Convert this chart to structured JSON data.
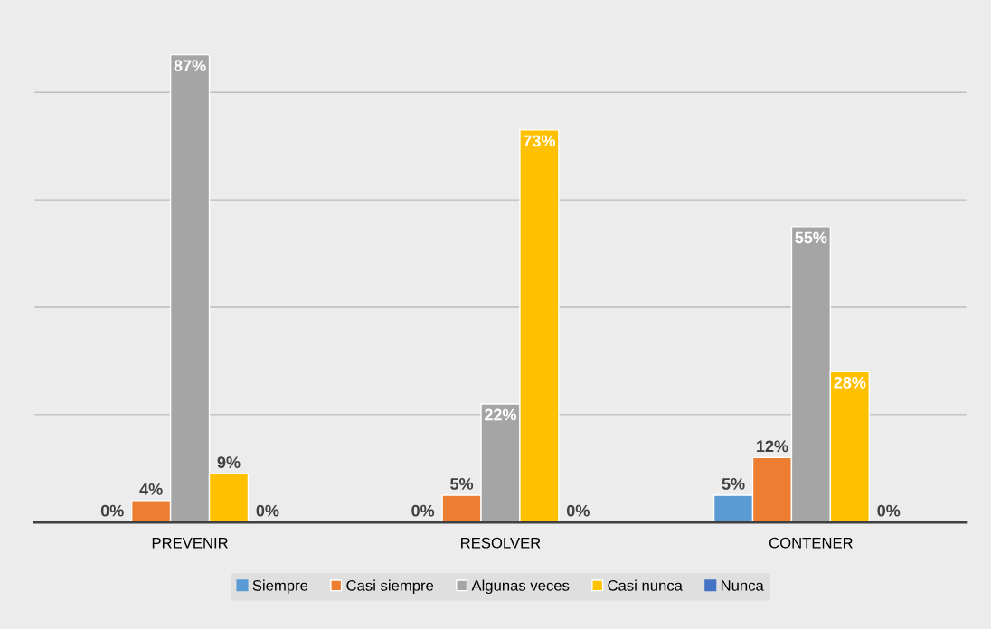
{
  "chart_data": {
    "type": "bar",
    "categories": [
      "PREVENIR",
      "RESOLVER",
      "CONTENER"
    ],
    "series": [
      {
        "name": "Siempre",
        "color": "#5b9bd5",
        "values": [
          0,
          0,
          5
        ],
        "value_labels": [
          "0%",
          "0%",
          "5%"
        ]
      },
      {
        "name": "Casi siempre",
        "color": "#ed7d31",
        "values": [
          4,
          5,
          12
        ],
        "value_labels": [
          "4%",
          "5%",
          "12%"
        ]
      },
      {
        "name": "Algunas veces",
        "color": "#a5a5a5",
        "values": [
          87,
          22,
          55
        ],
        "value_labels": [
          "87%",
          "22%",
          "55%"
        ]
      },
      {
        "name": "Casi nunca",
        "color": "#ffc000",
        "values": [
          9,
          73,
          28
        ],
        "value_labels": [
          "9%",
          "73%",
          "28%"
        ]
      },
      {
        "name": "Nunca",
        "color": "#4472c4",
        "values": [
          0,
          0,
          0
        ],
        "value_labels": [
          "0%",
          "0%",
          "0%"
        ]
      }
    ],
    "tick_labels": "x",
    "grid": "y",
    "legend": "bottom"
  }
}
